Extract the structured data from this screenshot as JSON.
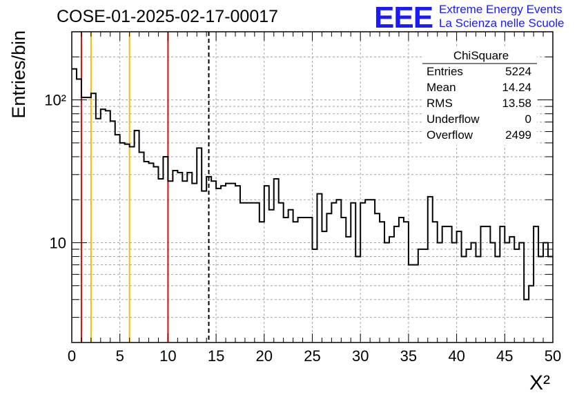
{
  "title": "COSE-01-2025-02-17-00017",
  "logo": {
    "mark": "EEE",
    "line1": "Extreme Energy Events",
    "line2": "La Scienza nelle Scuole",
    "color": "#1a1aff"
  },
  "stats": {
    "header": "ChiSquare",
    "rows": [
      {
        "label": "Entries",
        "value": "5224"
      },
      {
        "label": "Mean",
        "value": "14.24"
      },
      {
        "label": "RMS",
        "value": "13.58"
      },
      {
        "label": "Underflow",
        "value": "0"
      },
      {
        "label": "Overflow",
        "value": "2499"
      }
    ]
  },
  "chart_data": {
    "type": "histogram",
    "xlabel": "X²",
    "ylabel": "Entries/bin",
    "xlim": [
      0,
      50
    ],
    "ylim": [
      2,
      300
    ],
    "yscale": "log",
    "grid": true,
    "bin_width": 0.5,
    "xticks": [
      "0",
      "5",
      "10",
      "15",
      "20",
      "25",
      "30",
      "35",
      "40",
      "45",
      "50"
    ],
    "yticks": [
      {
        "label": "10",
        "value": 10
      },
      {
        "label": "10²",
        "value": 100
      }
    ],
    "values": [
      165,
      140,
      104,
      104,
      111,
      74,
      86,
      84,
      71,
      57,
      50,
      49,
      47,
      61,
      43,
      37,
      36,
      34,
      28,
      40,
      27,
      32,
      31,
      27,
      31,
      26,
      46,
      23,
      29,
      27,
      24,
      25,
      26,
      26,
      25,
      19,
      19,
      19,
      19,
      14,
      25,
      17,
      28,
      19,
      15,
      17,
      14,
      15,
      15,
      15,
      9,
      22,
      12,
      16,
      19,
      20,
      15,
      11,
      19,
      8,
      19,
      20,
      20,
      16,
      14,
      10,
      11,
      13,
      15,
      14,
      7,
      7,
      9,
      9,
      21,
      14,
      10,
      13,
      13,
      10,
      12,
      8,
      9,
      10,
      8,
      13,
      13,
      10,
      8,
      13,
      10,
      11,
      9,
      10,
      4,
      5,
      13,
      8,
      10,
      8
    ],
    "vertical_lines": [
      {
        "x": 1,
        "color": "#d01010",
        "style": "solid"
      },
      {
        "x": 2,
        "color": "#f0c000",
        "style": "solid"
      },
      {
        "x": 6,
        "color": "#f0c000",
        "style": "solid"
      },
      {
        "x": 10,
        "color": "#d01010",
        "style": "solid"
      },
      {
        "x": 14.24,
        "color": "#000000",
        "style": "dashed"
      }
    ]
  }
}
